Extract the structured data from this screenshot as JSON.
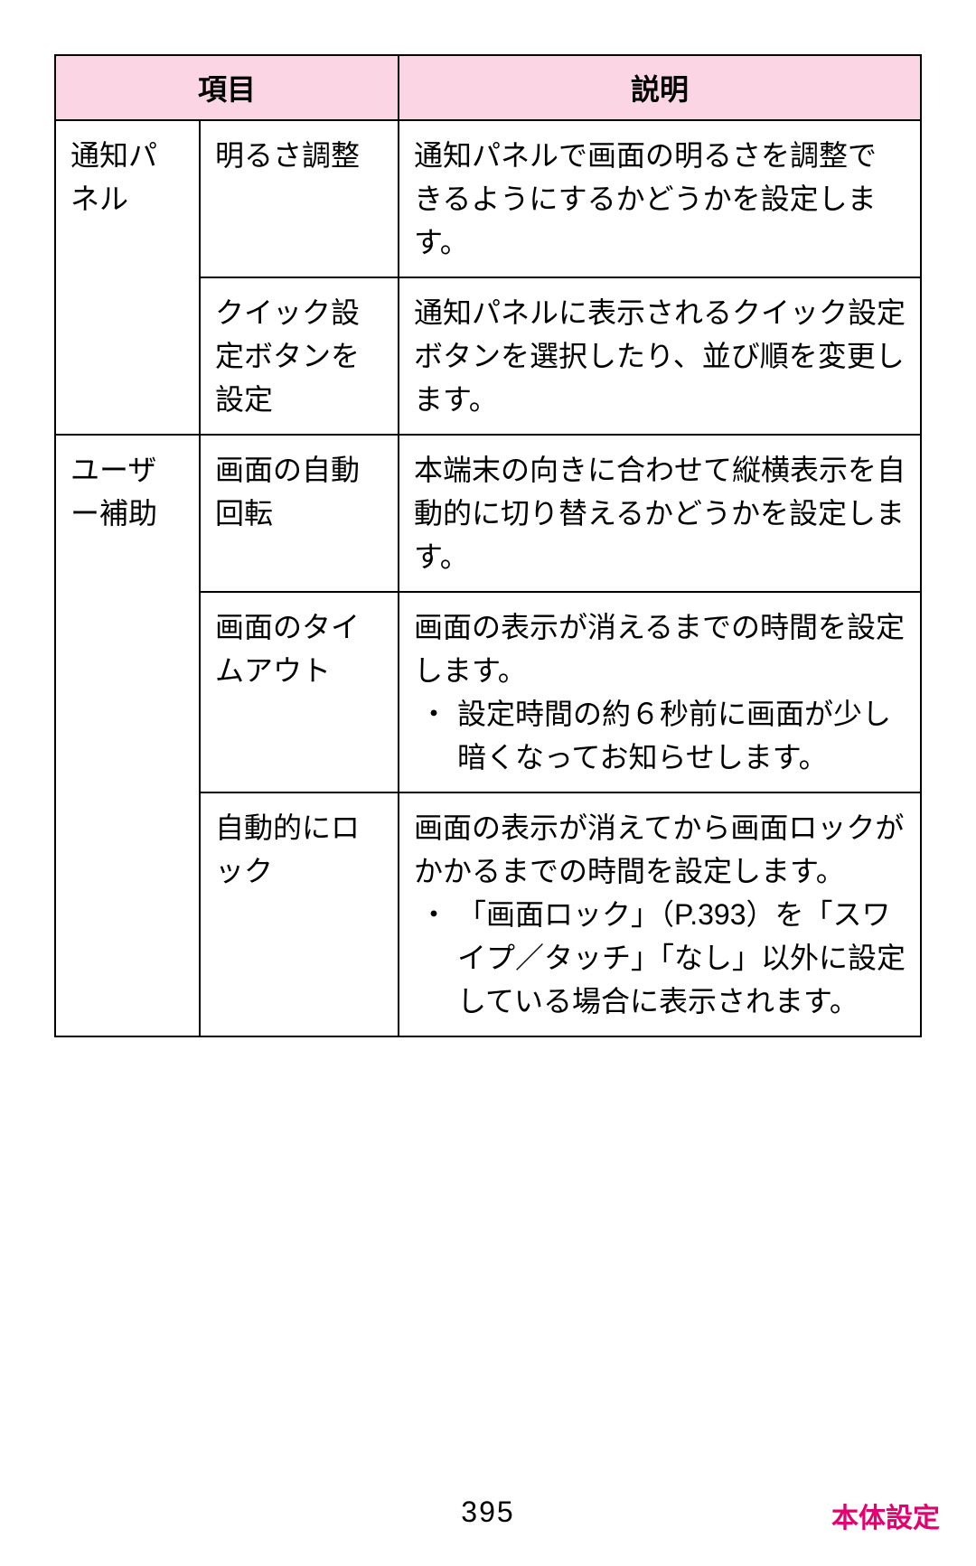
{
  "table": {
    "header_bg": "#fbd5e3",
    "border_color": "#000000",
    "headers": {
      "item": "項目",
      "desc": "説明"
    },
    "groups": [
      {
        "category": "通知パネル",
        "rows": [
          {
            "item": "明るさ調整",
            "desc_plain": "通知パネルで画面の明るさを調整できるようにするかどうかを設定します。"
          },
          {
            "item": "クイック設定ボタンを設定",
            "desc_plain": "通知パネルに表示されるクイック設定ボタンを選択したり、並び順を変更します。"
          }
        ]
      },
      {
        "category": "ユーザー補助",
        "rows": [
          {
            "item": "画面の自動回転",
            "desc_plain": "本端末の向きに合わせて縦横表示を自動的に切り替えるかどうかを設定します。"
          },
          {
            "item": "画面のタイムアウト",
            "desc_plain": "画面の表示が消えるまでの時間を設定します。",
            "desc_bullets": [
              "設定時間の約６秒前に画面が少し暗くなってお知らせします。"
            ]
          },
          {
            "item": "自動的にロック",
            "desc_plain": "画面の表示が消えてから画面ロックがかかるまでの時間を設定します。",
            "desc_bullets": [
              "「画面ロック」（P.393）を「スワイプ／タッチ」「なし」以外に設定している場合に表示されます。"
            ]
          }
        ]
      }
    ]
  },
  "footer": {
    "page_number": "395",
    "section_label": "本体設定",
    "section_color": "#e6006f"
  }
}
